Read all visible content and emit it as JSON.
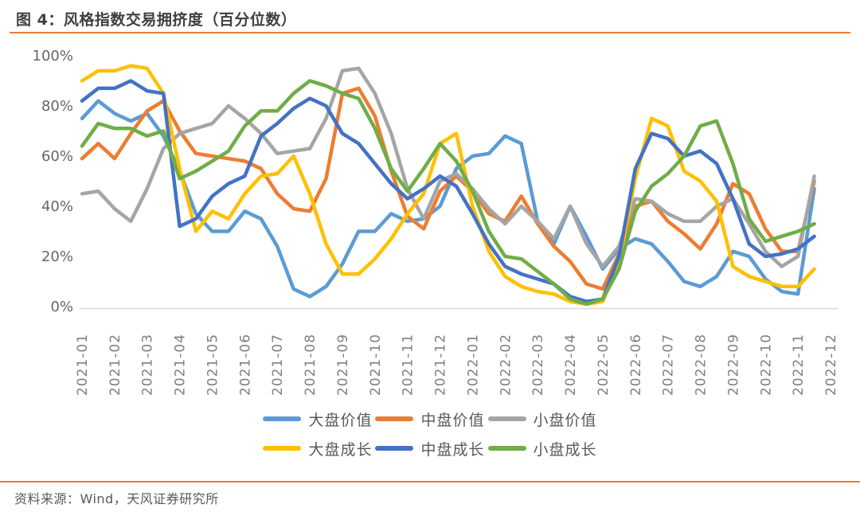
{
  "header": {
    "title": "图 4：风格指数交易拥挤度（百分位数）"
  },
  "footer": {
    "source": "资料来源：Wind，天风证券研究所"
  },
  "colors": {
    "accent_rule": "#ED7D31",
    "title_text": "#404040",
    "axis_text": "#666666",
    "axis_line": "#D9D9D9",
    "legend_text": "#595959"
  },
  "chart_data": {
    "type": "line",
    "title": "风格指数交易拥挤度（百分位数）",
    "xlabel": "",
    "ylabel": "",
    "ylim": [
      0,
      100
    ],
    "y_ticks": [
      0,
      20,
      40,
      60,
      80,
      100
    ],
    "y_tick_suffix": "%",
    "grid": false,
    "legend_position": "bottom",
    "samples_per_month": 2,
    "x_tick_labels": [
      "2021-01",
      "2021-02",
      "2021-03",
      "2021-04",
      "2021-05",
      "2021-06",
      "2021-07",
      "2021-08",
      "2021-09",
      "2021-10",
      "2021-11",
      "2021-12",
      "2022-01",
      "2022-02",
      "2022-03",
      "2022-04",
      "2022-05",
      "2022-06",
      "2022-07",
      "2022-08",
      "2022-09",
      "2022-10",
      "2022-11",
      "2022-12"
    ],
    "series": [
      {
        "name": "大盘价值",
        "color": "#5B9BD5",
        "values": [
          75,
          82,
          77,
          74,
          77,
          68,
          54,
          37,
          30,
          30,
          38,
          35,
          24,
          7,
          4,
          8,
          17,
          30,
          30,
          37,
          34,
          35,
          40,
          55,
          60,
          61,
          68,
          65,
          34,
          25,
          40,
          28,
          15,
          23,
          27,
          25,
          18,
          10,
          8,
          12,
          22,
          20,
          11,
          6,
          5,
          47
        ]
      },
      {
        "name": "中盘价值",
        "color": "#ED7D31",
        "values": [
          59,
          65,
          59,
          69,
          78,
          82,
          70,
          61,
          60,
          59,
          58,
          55,
          45,
          39,
          38,
          51,
          85,
          87,
          76,
          54,
          36,
          31,
          46,
          52,
          46,
          37,
          34,
          44,
          33,
          24,
          18,
          9,
          7,
          21,
          40,
          42,
          34,
          29,
          23,
          33,
          49,
          45,
          31,
          22,
          22,
          50
        ]
      },
      {
        "name": "小盘价值",
        "color": "#A5A5A5",
        "values": [
          45,
          46,
          39,
          34,
          47,
          63,
          69,
          71,
          73,
          80,
          75,
          69,
          61,
          62,
          63,
          75,
          94,
          95,
          85,
          69,
          47,
          35,
          50,
          53,
          47,
          39,
          33,
          40,
          34,
          27,
          40,
          25,
          16,
          24,
          43,
          42,
          37,
          34,
          34,
          40,
          43,
          33,
          22,
          16,
          20,
          52
        ]
      },
      {
        "name": "大盘成长",
        "color": "#FFC000",
        "values": [
          90,
          94,
          94,
          96,
          95,
          85,
          55,
          30,
          38,
          35,
          45,
          52,
          53,
          60,
          45,
          25,
          13,
          13,
          19,
          27,
          37,
          45,
          65,
          69,
          40,
          22,
          12,
          8,
          6,
          5,
          2,
          1,
          2,
          18,
          51,
          75,
          72,
          54,
          50,
          42,
          16,
          12,
          10,
          8,
          8,
          15
        ]
      },
      {
        "name": "中盘成长",
        "color": "#4472C4",
        "values": [
          82,
          87,
          87,
          90,
          86,
          85,
          32,
          35,
          44,
          49,
          52,
          68,
          73,
          79,
          83,
          80,
          69,
          65,
          57,
          49,
          43,
          47,
          52,
          48,
          37,
          25,
          16,
          13,
          11,
          9,
          4,
          2,
          3,
          20,
          55,
          69,
          67,
          60,
          62,
          57,
          43,
          25,
          20,
          21,
          23,
          28
        ]
      },
      {
        "name": "小盘成长",
        "color": "#70AD47",
        "values": [
          64,
          73,
          71,
          71,
          68,
          70,
          51,
          54,
          58,
          62,
          72,
          78,
          78,
          85,
          90,
          88,
          85,
          83,
          71,
          55,
          46,
          55,
          65,
          58,
          46,
          30,
          20,
          19,
          14,
          9,
          3,
          1,
          3,
          15,
          38,
          48,
          53,
          60,
          72,
          74,
          57,
          35,
          26,
          28,
          30,
          33
        ]
      }
    ]
  }
}
